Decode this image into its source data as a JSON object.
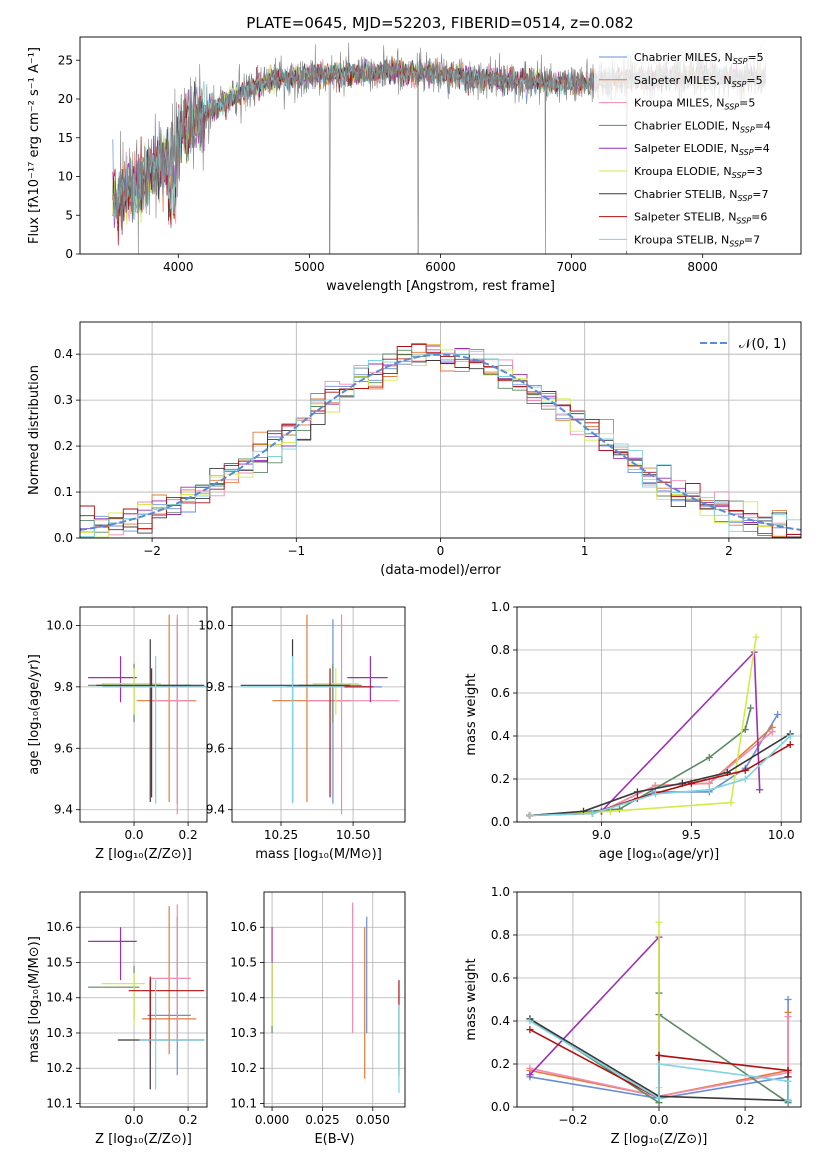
{
  "chart_data": [
    {
      "type": "line",
      "title": "PLATE=0645, MJD=52203, FIBERID=0514, z=0.082",
      "xlabel": "wavelength [Angstrom, rest frame]",
      "ylabel": "Flux [fλ10⁻¹⁷ erg cm⁻² s⁻¹ A⁻¹]",
      "xlim": [
        3250,
        8750
      ],
      "ylim": [
        0,
        28
      ],
      "xticks": [
        "4000",
        "5000",
        "6000",
        "7000",
        "8000"
      ],
      "yticks": [
        "0",
        "5",
        "10",
        "15",
        "20",
        "25"
      ],
      "legend_position": "upper right",
      "data_color": "#808080",
      "continuum": {
        "x": [
          3500,
          3700,
          3900,
          4000,
          4200,
          4500,
          4700,
          5000,
          5300,
          5600,
          6000,
          6500,
          7000,
          7400,
          8000,
          8500
        ],
        "y": [
          7,
          9,
          12,
          15,
          18,
          21,
          22.5,
          23,
          23.2,
          23.5,
          23.2,
          22.5,
          22,
          22.5,
          23,
          22.5
        ]
      },
      "series": [
        {
          "name": "Chabrier MILES, N_SSP=5",
          "color": "#6a8fd6"
        },
        {
          "name": "Salpeter MILES, N_SSP=5",
          "color": "#e07b39"
        },
        {
          "name": "Kroupa MILES, N_SSP=5",
          "color": "#f28cb1"
        },
        {
          "name": "Chabrier ELODIE, N_SSP=4",
          "color": "#5c8a64"
        },
        {
          "name": "Salpeter ELODIE, N_SSP=4",
          "color": "#9b30b5"
        },
        {
          "name": "Kroupa ELODIE, N_SSP=3",
          "color": "#d4ea4c"
        },
        {
          "name": "Chabrier STELIB, N_SSP=7",
          "color": "#3a3a3a"
        },
        {
          "name": "Salpeter STELIB, N_SSP=6",
          "color": "#b01010"
        },
        {
          "name": "Kroupa STELIB, N_SSP=7",
          "color": "#7ed3e0"
        }
      ]
    },
    {
      "type": "histogram",
      "xlabel": "(data-model)/error",
      "ylabel": "Normed distribution",
      "xlim": [
        -2.5,
        2.5
      ],
      "ylim": [
        0,
        0.47
      ],
      "xticks": [
        "−2",
        "−1",
        "0",
        "1",
        "2"
      ],
      "yticks": [
        "0.0",
        "0.1",
        "0.2",
        "0.3",
        "0.4"
      ],
      "grid": true,
      "legend_label": "𝒩(0, 1)",
      "gauss_color": "#5b8bd6",
      "bin_width": 0.1
    },
    {
      "type": "scatter",
      "xlabel": "Z [log₁₀(Z/Z⊙)]",
      "ylabel": "age  [log₁₀(age/yr)]",
      "xlim": [
        -0.2,
        0.27
      ],
      "ylim": [
        9.36,
        10.06
      ],
      "xticks": [
        -0.0,
        0.2
      ],
      "xticklabels": [
        "0.0",
        "0.2"
      ],
      "yticks": [
        9.4,
        9.6,
        9.8,
        10.0
      ],
      "yticklabels": [
        "9.4",
        "9.6",
        "9.8",
        "10.0"
      ],
      "points": [
        {
          "x": 0.16,
          "y": 9.8,
          "xerr": [
            0.05,
            0.05
          ],
          "yerr": [
            0.38,
            0.22
          ],
          "color": "#6a8fd6"
        },
        {
          "x": 0.13,
          "y": 9.755,
          "xerr": [
            0.12,
            0.1
          ],
          "yerr": [
            0.33,
            0.28
          ],
          "color": "#e07b39"
        },
        {
          "x": 0.16,
          "y": 9.755,
          "xerr": [
            0.1,
            0.05
          ],
          "yerr": [
            0.37,
            0.28
          ],
          "color": "#f28cb1"
        },
        {
          "x": 0.0,
          "y": 9.805,
          "xerr": [
            0.17,
            0.21
          ],
          "yerr": [
            0.12,
            0.07
          ],
          "color": "#5c8a64"
        },
        {
          "x": -0.05,
          "y": 9.83,
          "xerr": [
            0.12,
            0.06
          ],
          "yerr": [
            0.08,
            0.07
          ],
          "color": "#9b30b5"
        },
        {
          "x": 0.0,
          "y": 9.81,
          "xerr": [
            0.12,
            0.1
          ],
          "yerr": [
            0.1,
            0.05
          ],
          "color": "#d4ea4c"
        },
        {
          "x": 0.06,
          "y": 9.805,
          "xerr": [
            0.2,
            0.2
          ],
          "yerr": [
            0.38,
            0.15
          ],
          "color": "#3a3a3a"
        },
        {
          "x": 0.065,
          "y": 9.8,
          "xerr": [
            0.18,
            0.2
          ],
          "yerr": [
            0.36,
            0.06
          ],
          "color": "#b01010"
        },
        {
          "x": 0.08,
          "y": 9.8,
          "xerr": [
            0.2,
            0.2
          ],
          "yerr": [
            0.38,
            0.1
          ],
          "color": "#7ed3e0"
        }
      ]
    },
    {
      "type": "scatter",
      "xlabel": "mass [log₁₀(M/M⊙)]",
      "xlim": [
        10.08,
        10.68
      ],
      "ylim": [
        9.36,
        10.06
      ],
      "xticks": [
        10.25,
        10.5
      ],
      "xticklabels": [
        "10.25",
        "10.50"
      ],
      "yticks": [
        9.4,
        9.6,
        9.8,
        10.0
      ],
      "yticklabels": [
        "9.4",
        "9.6",
        "9.8",
        "10.0"
      ],
      "points": [
        {
          "x": 10.43,
          "y": 9.8,
          "xerr": [
            0.15,
            0.17
          ],
          "yerr": [
            0.38,
            0.22
          ],
          "color": "#6a8fd6"
        },
        {
          "x": 10.34,
          "y": 9.755,
          "xerr": [
            0.12,
            0.15
          ],
          "yerr": [
            0.33,
            0.28
          ],
          "color": "#e07b39"
        },
        {
          "x": 10.46,
          "y": 9.755,
          "xerr": [
            0.12,
            0.2
          ],
          "yerr": [
            0.37,
            0.28
          ],
          "color": "#f28cb1"
        },
        {
          "x": 10.43,
          "y": 9.805,
          "xerr": [
            0.12,
            0.1
          ],
          "yerr": [
            0.12,
            0.07
          ],
          "color": "#5c8a64"
        },
        {
          "x": 10.56,
          "y": 9.83,
          "xerr": [
            0.08,
            0.06
          ],
          "yerr": [
            0.08,
            0.07
          ],
          "color": "#9b30b5"
        },
        {
          "x": 10.44,
          "y": 9.81,
          "xerr": [
            0.08,
            0.08
          ],
          "yerr": [
            0.1,
            0.05
          ],
          "color": "#d4ea4c"
        },
        {
          "x": 10.29,
          "y": 9.805,
          "xerr": [
            0.18,
            0.2
          ],
          "yerr": [
            0.38,
            0.15
          ],
          "color": "#3a3a3a"
        },
        {
          "x": 10.42,
          "y": 9.8,
          "xerr": [
            0.15,
            0.15
          ],
          "yerr": [
            0.36,
            0.06
          ],
          "color": "#b01010"
        },
        {
          "x": 10.29,
          "y": 9.8,
          "xerr": [
            0.18,
            0.18
          ],
          "yerr": [
            0.38,
            0.1
          ],
          "color": "#7ed3e0"
        }
      ]
    },
    {
      "type": "line",
      "xlabel": "age  [log₁₀(age/yr)]",
      "ylabel": "mass weight",
      "xlim": [
        8.53,
        10.11
      ],
      "ylim": [
        0,
        1.0
      ],
      "xticks": [
        9.0,
        9.5,
        10.0
      ],
      "xticklabels": [
        "9.0",
        "9.5",
        "10.0"
      ],
      "yticks": [
        0,
        0.2,
        0.4,
        0.6,
        0.8,
        1.0
      ],
      "yticklabels": [
        "0.0",
        "0.2",
        "0.4",
        "0.6",
        "0.8",
        "1.0"
      ],
      "series": [
        {
          "color": "#6a8fd6",
          "x": [
            8.6,
            9.0,
            9.3,
            9.6,
            9.8,
            9.98
          ],
          "y": [
            0.03,
            0.05,
            0.14,
            0.14,
            0.25,
            0.5
          ]
        },
        {
          "color": "#e07b39",
          "x": [
            8.6,
            9.0,
            9.3,
            9.6,
            9.95
          ],
          "y": [
            0.03,
            0.05,
            0.17,
            0.18,
            0.44
          ]
        },
        {
          "color": "#f28cb1",
          "x": [
            8.6,
            9.0,
            9.3,
            9.6,
            9.95
          ],
          "y": [
            0.03,
            0.05,
            0.17,
            0.18,
            0.42
          ]
        },
        {
          "color": "#5c8a64",
          "x": [
            8.6,
            9.1,
            9.6,
            9.8,
            9.83
          ],
          "y": [
            0.03,
            0.06,
            0.3,
            0.43,
            0.53
          ]
        },
        {
          "color": "#9b30b5",
          "x": [
            8.6,
            9.0,
            9.85,
            9.88
          ],
          "y": [
            0.03,
            0.05,
            0.79,
            0.15
          ]
        },
        {
          "color": "#d4ea4c",
          "x": [
            8.6,
            9.05,
            9.72,
            9.86
          ],
          "y": [
            0.03,
            0.05,
            0.09,
            0.86
          ]
        },
        {
          "color": "#3a3a3a",
          "x": [
            8.6,
            8.9,
            9.2,
            9.45,
            9.7,
            10.05
          ],
          "y": [
            0.03,
            0.05,
            0.14,
            0.18,
            0.23,
            0.41
          ]
        },
        {
          "color": "#b01010",
          "x": [
            8.6,
            8.95,
            9.2,
            9.5,
            9.8,
            10.05
          ],
          "y": [
            0.03,
            0.04,
            0.11,
            0.18,
            0.24,
            0.36
          ]
        },
        {
          "color": "#7ed3e0",
          "x": [
            8.6,
            8.95,
            9.3,
            9.6,
            9.8,
            10.05
          ],
          "y": [
            0.03,
            0.04,
            0.13,
            0.15,
            0.2,
            0.4
          ]
        }
      ]
    },
    {
      "type": "scatter",
      "xlabel": "Z [log₁₀(Z/Z⊙)]",
      "ylabel": "mass [log₁₀(M/M⊙)]",
      "xlim": [
        -0.2,
        0.27
      ],
      "ylim": [
        10.09,
        10.7
      ],
      "xticks": [
        -0.0,
        0.2
      ],
      "xticklabels": [
        "0.0",
        "0.2"
      ],
      "yticks": [
        10.1,
        10.2,
        10.3,
        10.4,
        10.5,
        10.6
      ],
      "yticklabels": [
        "10.1",
        "10.2",
        "10.3",
        "10.4",
        "10.5",
        "10.6"
      ],
      "points": [
        {
          "x": 0.16,
          "y": 10.35,
          "xerr": [
            0.11,
            0.05
          ],
          "yerr": [
            0.17,
            0.28
          ],
          "color": "#6a8fd6"
        },
        {
          "x": 0.13,
          "y": 10.34,
          "xerr": [
            0.1,
            0.1
          ],
          "yerr": [
            0.1,
            0.32
          ],
          "color": "#e07b39"
        },
        {
          "x": 0.16,
          "y": 10.455,
          "xerr": [
            0.1,
            0.05
          ],
          "yerr": [
            0.18,
            0.21
          ],
          "color": "#f28cb1"
        },
        {
          "x": 0.0,
          "y": 10.43,
          "xerr": [
            0.17,
            0.02
          ],
          "yerr": [
            0.09,
            0.06
          ],
          "color": "#5c8a64"
        },
        {
          "x": -0.05,
          "y": 10.56,
          "xerr": [
            0.12,
            0.06
          ],
          "yerr": [
            0.11,
            0.04
          ],
          "color": "#9b30b5"
        },
        {
          "x": 0.0,
          "y": 10.44,
          "xerr": [
            0.12,
            0.04
          ],
          "yerr": [
            0.12,
            0.03
          ],
          "color": "#d4ea4c"
        },
        {
          "x": 0.06,
          "y": 10.28,
          "xerr": [
            0.12,
            0.2
          ],
          "yerr": [
            0.14,
            0.17
          ],
          "color": "#3a3a3a"
        },
        {
          "x": 0.06,
          "y": 10.42,
          "xerr": [
            0.08,
            0.2
          ],
          "yerr": [
            0.15,
            0.04
          ],
          "color": "#b01010"
        },
        {
          "x": 0.08,
          "y": 10.28,
          "xerr": [
            0.06,
            0.18
          ],
          "yerr": [
            0.14,
            0.17
          ],
          "color": "#7ed3e0"
        }
      ]
    },
    {
      "type": "scatter",
      "xlabel": "E(B-V)",
      "xlim": [
        -0.004,
        0.066
      ],
      "ylim": [
        10.09,
        10.7
      ],
      "xticks": [
        0.0,
        0.025,
        0.05
      ],
      "xticklabels": [
        "0.000",
        "0.025",
        "0.050"
      ],
      "yticks": [
        10.1,
        10.2,
        10.3,
        10.4,
        10.5,
        10.6
      ],
      "yticklabels": [
        "10.1",
        "10.2",
        "10.3",
        "10.4",
        "10.5",
        "10.6"
      ],
      "points": [
        {
          "x": 0.047,
          "y": 10.36,
          "xerr": [
            0,
            0
          ],
          "yerr": [
            0.06,
            0.27
          ],
          "color": "#6a8fd6"
        },
        {
          "x": 0.046,
          "y": 10.34,
          "xerr": [
            0,
            0
          ],
          "yerr": [
            0.17,
            0.26
          ],
          "color": "#e07b39"
        },
        {
          "x": 0.04,
          "y": 10.45,
          "xerr": [
            0,
            0
          ],
          "yerr": [
            0.15,
            0.22
          ],
          "color": "#f28cb1"
        },
        {
          "x": 0.0,
          "y": 10.44,
          "xerr": [
            0,
            0
          ],
          "yerr": [
            0.14,
            0.06
          ],
          "color": "#5c8a64"
        },
        {
          "x": 0.0,
          "y": 10.5,
          "xerr": [
            0,
            0
          ],
          "yerr": [
            0.1,
            0.1
          ],
          "color": "#9b30b5"
        },
        {
          "x": 0.0,
          "y": 10.44,
          "xerr": [
            0,
            0
          ],
          "yerr": [
            0.12,
            0.06
          ],
          "color": "#d4ea4c"
        },
        {
          "x": 0.063,
          "y": 10.3,
          "xerr": [
            0,
            0
          ],
          "yerr": [
            0.12,
            0.08
          ],
          "color": "#3a3a3a"
        },
        {
          "x": 0.063,
          "y": 10.42,
          "xerr": [
            0,
            0
          ],
          "yerr": [
            0.04,
            0.03
          ],
          "color": "#b01010"
        },
        {
          "x": 0.063,
          "y": 10.28,
          "xerr": [
            0,
            0
          ],
          "yerr": [
            0.15,
            0.1
          ],
          "color": "#7ed3e0"
        }
      ]
    },
    {
      "type": "line",
      "xlabel": "Z [log₁₀(Z/Z⊙)]",
      "ylabel": "mass weight",
      "xlim": [
        -0.33,
        0.33
      ],
      "ylim": [
        0,
        1.0
      ],
      "xticks": [
        -0.2,
        0.0,
        0.2
      ],
      "xticklabels": [
        "−0.2",
        "0.0",
        "0.2"
      ],
      "yticks": [
        0,
        0.2,
        0.4,
        0.6,
        0.8,
        1.0
      ],
      "yticklabels": [
        "0.0",
        "0.2",
        "0.4",
        "0.6",
        "0.8",
        "1.0"
      ],
      "series": [
        {
          "color": "#6a8fd6",
          "x": [
            -0.3,
            0.0,
            0.3,
            0.3,
            0.3
          ],
          "y": [
            0.14,
            0.04,
            0.14,
            0.5,
            0.03
          ]
        },
        {
          "color": "#e07b39",
          "x": [
            -0.3,
            0.0,
            0.3,
            0.3,
            0.3
          ],
          "y": [
            0.17,
            0.05,
            0.17,
            0.44,
            0.03
          ]
        },
        {
          "color": "#f28cb1",
          "x": [
            -0.3,
            0.0,
            0.3,
            0.3
          ],
          "y": [
            0.18,
            0.05,
            0.16,
            0.42
          ]
        },
        {
          "color": "#5c8a64",
          "x": [
            -0.3,
            0.0,
            0.0,
            0.0,
            0.3
          ],
          "y": [
            0.41,
            0.02,
            0.53,
            0.43,
            0.02
          ]
        },
        {
          "color": "#9b30b5",
          "x": [
            -0.3,
            0.0,
            0.0
          ],
          "y": [
            0.15,
            0.79,
            0.05
          ]
        },
        {
          "color": "#d4ea4c",
          "x": [
            0.0,
            0.0,
            0.0
          ],
          "y": [
            0.86,
            0.09,
            0.05
          ]
        },
        {
          "color": "#3a3a3a",
          "x": [
            -0.3,
            0.0,
            0.3,
            0.3
          ],
          "y": [
            0.41,
            0.05,
            0.03,
            0.14
          ]
        },
        {
          "color": "#b01010",
          "x": [
            -0.3,
            0.0,
            0.0,
            0.3,
            0.3
          ],
          "y": [
            0.36,
            0.04,
            0.24,
            0.17,
            0.03
          ]
        },
        {
          "color": "#7ed3e0",
          "x": [
            -0.3,
            0.0,
            0.0,
            0.3,
            0.3
          ],
          "y": [
            0.4,
            0.04,
            0.2,
            0.12,
            0.03
          ]
        }
      ]
    }
  ]
}
